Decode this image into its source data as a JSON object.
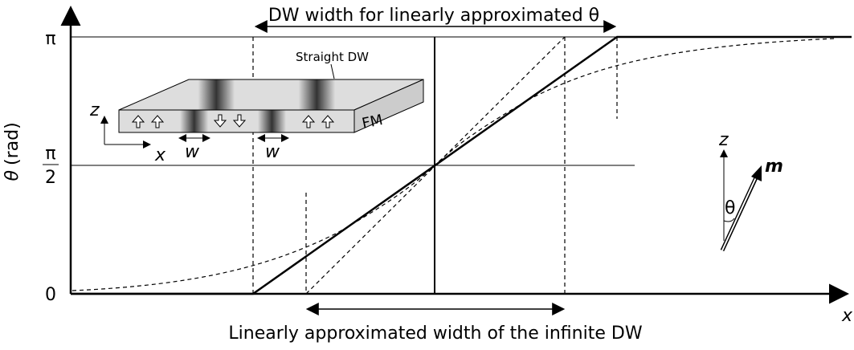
{
  "top_label": "DW width for linearly approximated θ",
  "bottom_label": "Linearly approximated width of the infinite DW",
  "y_axis": {
    "symbol": "θ",
    "unit": "(rad)",
    "tick_pi": "π",
    "tick_half_num": "π",
    "tick_half_den": "2",
    "tick_zero": "0"
  },
  "x_axis": {
    "label": "x"
  },
  "inset": {
    "label": "Straight DW",
    "z": "z",
    "x": "x",
    "w_left": "w",
    "w_right": "w",
    "material": "FM"
  },
  "vector": {
    "z": "z",
    "m": "m",
    "angle": "θ"
  }
}
